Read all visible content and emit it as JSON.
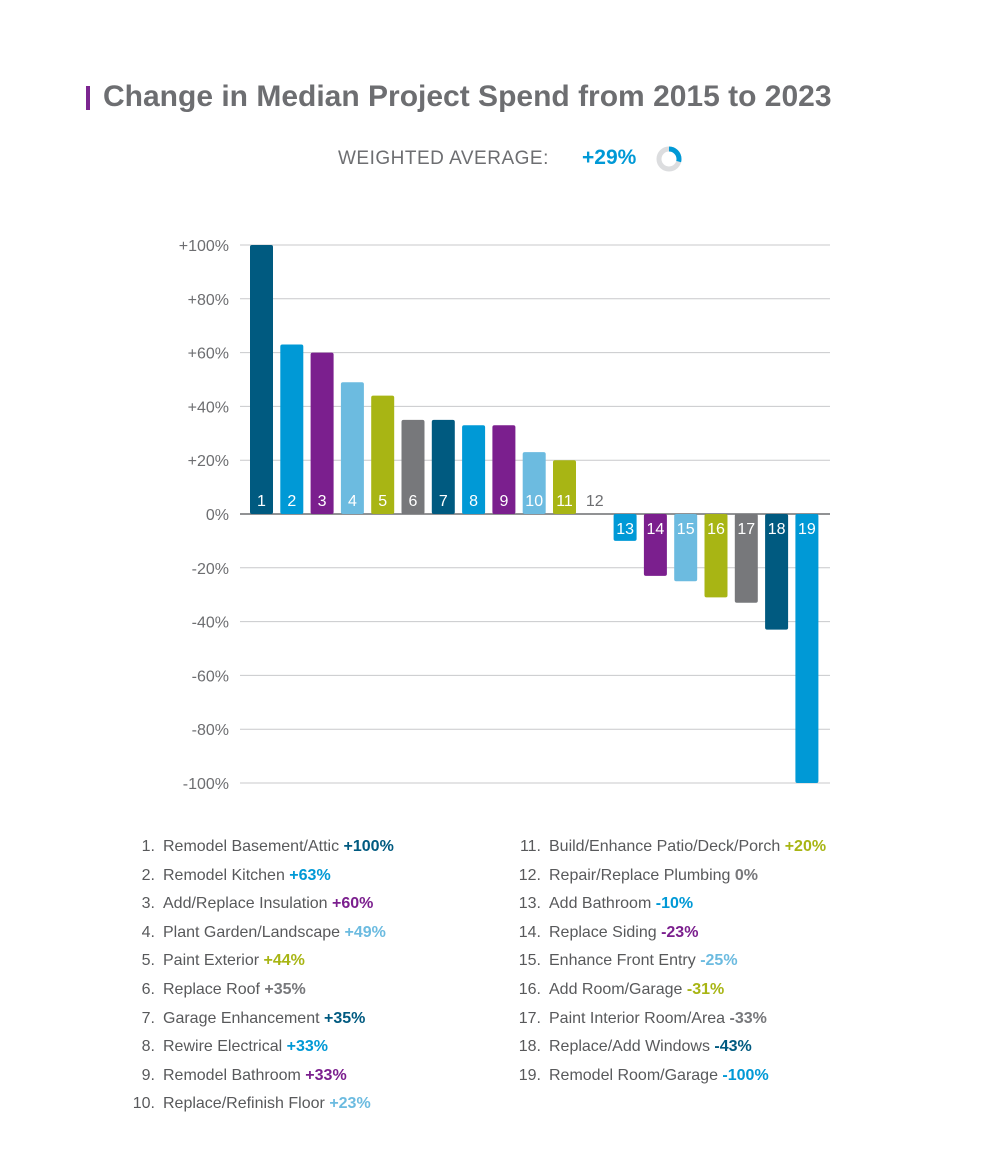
{
  "title": "Change in Median Project Spend from 2015 to 2023",
  "weighted_average": {
    "label": "WEIGHTED AVERAGE:",
    "value": "+29%",
    "fraction": 0.29
  },
  "colors": {
    "navy": "#005a80",
    "blue": "#0099d6",
    "purple": "#7b1f8e",
    "lightblue": "#6cbbe0",
    "olive": "#a8b514",
    "gray": "#77787b",
    "title_accent": "#7b2590"
  },
  "chart_data": {
    "type": "bar",
    "title": "Change in Median Project Spend from 2015 to 2023",
    "xlabel": "",
    "ylabel": "",
    "ylim": [
      -100,
      100
    ],
    "y_ticks": [
      "+100%",
      "+80%",
      "+60%",
      "+40%",
      "+20%",
      "0%",
      "-20%",
      "-40%",
      "-60%",
      "-80%",
      "-100%"
    ],
    "y_tick_values": [
      100,
      80,
      60,
      40,
      20,
      0,
      -20,
      -40,
      -60,
      -80,
      -100
    ],
    "grid": true,
    "categories": [
      "1",
      "2",
      "3",
      "4",
      "5",
      "6",
      "7",
      "8",
      "9",
      "10",
      "11",
      "12",
      "13",
      "14",
      "15",
      "16",
      "17",
      "18",
      "19"
    ],
    "values": [
      100,
      63,
      60,
      49,
      44,
      35,
      35,
      33,
      33,
      23,
      20,
      0,
      -10,
      -23,
      -25,
      -31,
      -33,
      -43,
      -100
    ],
    "bar_colors": [
      "navy",
      "blue",
      "purple",
      "lightblue",
      "olive",
      "gray",
      "navy",
      "blue",
      "purple",
      "lightblue",
      "olive",
      "gray",
      "blue",
      "purple",
      "lightblue",
      "olive",
      "gray",
      "navy",
      "blue"
    ],
    "legend": [
      {
        "num": "1.",
        "label": "Remodel Basement/Attic",
        "value": "+100%"
      },
      {
        "num": "2.",
        "label": "Remodel Kitchen",
        "value": "+63%"
      },
      {
        "num": "3.",
        "label": "Add/Replace Insulation",
        "value": "+60%"
      },
      {
        "num": "4.",
        "label": "Plant Garden/Landscape",
        "value": "+49%"
      },
      {
        "num": "5.",
        "label": "Paint Exterior",
        "value": "+44%"
      },
      {
        "num": "6.",
        "label": "Replace Roof",
        "value": "+35%"
      },
      {
        "num": "7.",
        "label": "Garage Enhancement",
        "value": "+35%"
      },
      {
        "num": "8.",
        "label": "Rewire Electrical",
        "value": "+33%"
      },
      {
        "num": "9.",
        "label": "Remodel Bathroom",
        "value": "+33%"
      },
      {
        "num": "10.",
        "label": "Replace/Refinish Floor",
        "value": "+23%"
      },
      {
        "num": "11.",
        "label": "Build/Enhance Patio/Deck/Porch",
        "value": "+20%"
      },
      {
        "num": "12.",
        "label": "Repair/Replace Plumbing",
        "value": "0%"
      },
      {
        "num": "13.",
        "label": "Add Bathroom",
        "value": "-10%"
      },
      {
        "num": "14.",
        "label": "Replace Siding",
        "value": "-23%"
      },
      {
        "num": "15.",
        "label": "Enhance Front Entry",
        "value": "-25%"
      },
      {
        "num": "16.",
        "label": "Add Room/Garage",
        "value": "-31%"
      },
      {
        "num": "17.",
        "label": "Paint Interior Room/Area",
        "value": "-33%"
      },
      {
        "num": "18.",
        "label": "Replace/Add Windows",
        "value": "-43%"
      },
      {
        "num": "19.",
        "label": "Remodel Room/Garage",
        "value": "-100%"
      }
    ]
  }
}
